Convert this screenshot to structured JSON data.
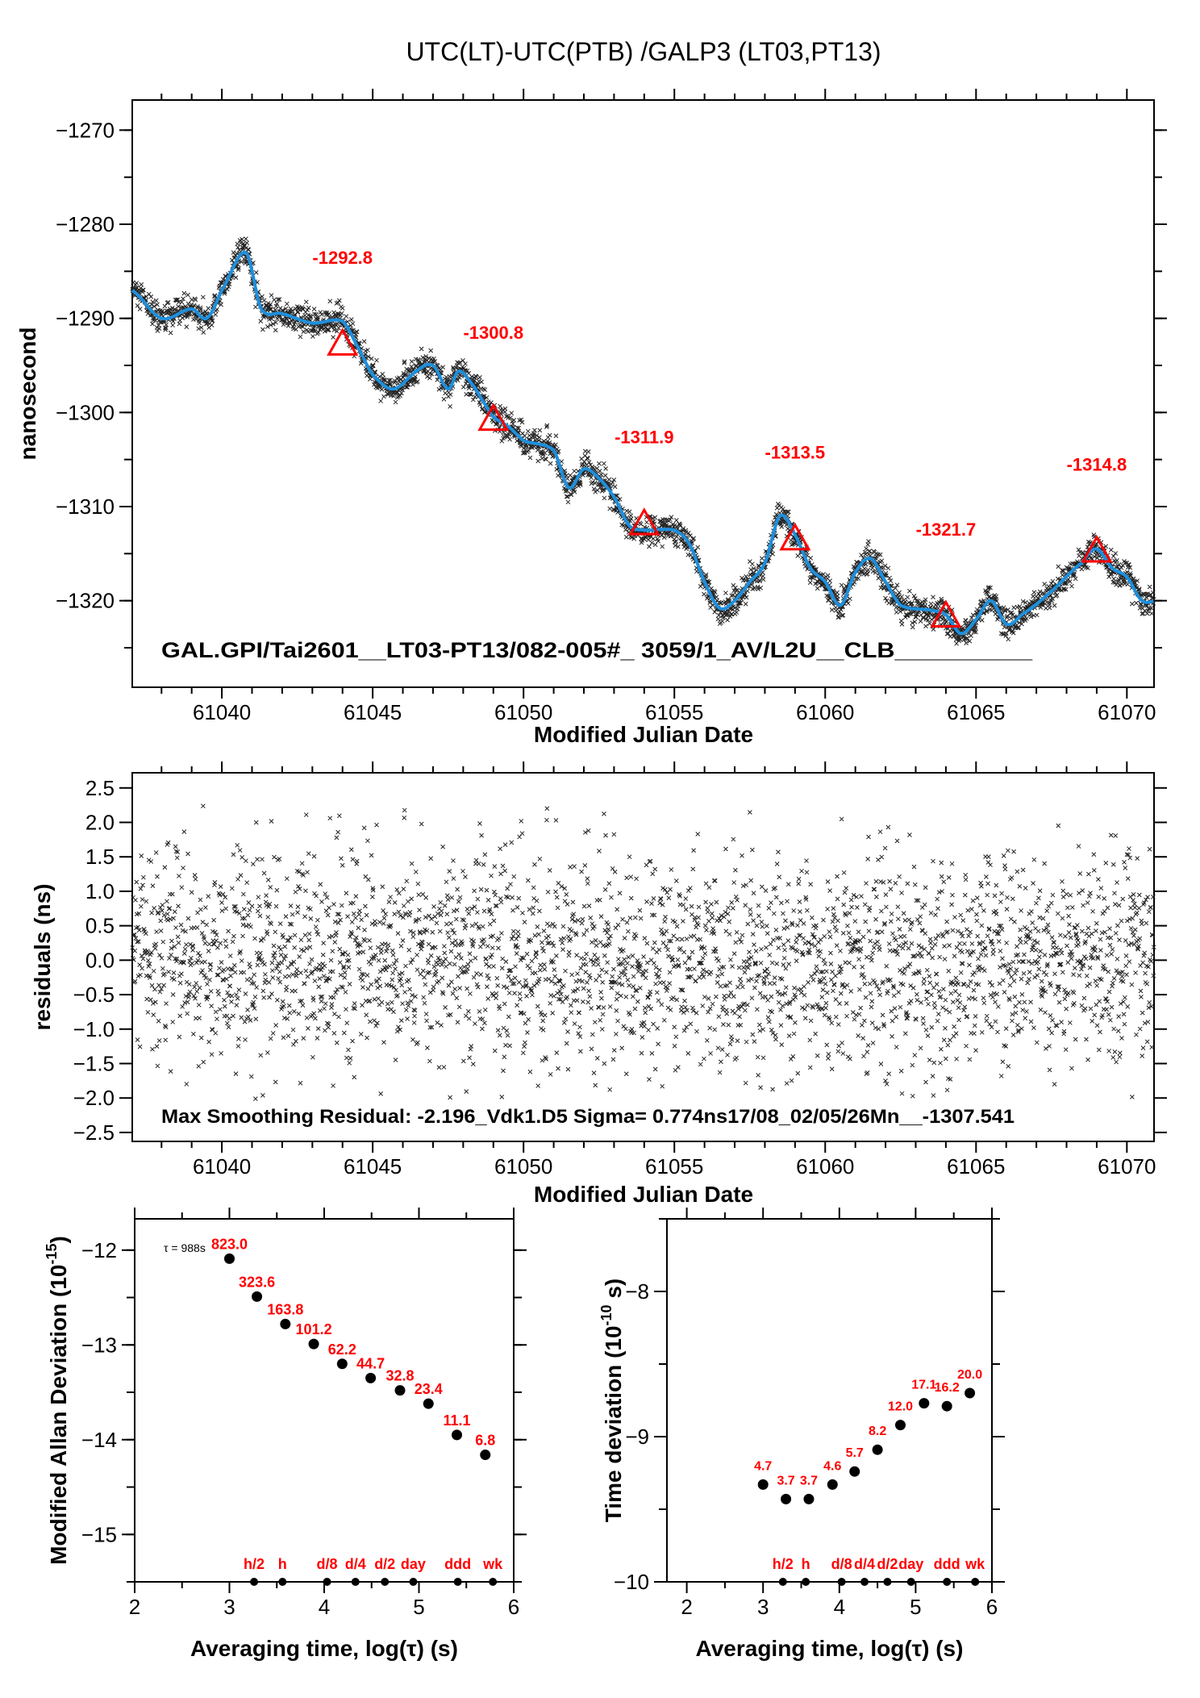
{
  "title": "UTC(LT)-UTC(PTB)  /GALP3  (LT03,PT13)",
  "chart_data": [
    {
      "type": "line",
      "name": "time-series",
      "xlabel": "Modified Julian Date",
      "ylabel": "nanosecond",
      "xlim": [
        61037.03,
        61070.9
      ],
      "ylim": [
        -1329.2,
        -1266.8
      ],
      "xticks": [
        "61040",
        "61045",
        "61050",
        "61055",
        "61060",
        "61065",
        "61070"
      ],
      "xtick_values": [
        61040,
        61045,
        61050,
        61055,
        61060,
        61065,
        61070
      ],
      "yticks": [
        "−1270",
        "−1280",
        "−1290",
        "−1300",
        "−1310",
        "−1320"
      ],
      "ytick_values": [
        -1270,
        -1280,
        -1290,
        -1300,
        -1310,
        -1320
      ],
      "annotation": "GAL.GPI/Tai2601__LT03-PT13/082-005#_  3059/1_AV/L2U__CLB__________",
      "smooth_curve_color": "#1e8fdc",
      "smooth_curve": {
        "x": [
          61037,
          61038,
          61039,
          61039.5,
          61040,
          61040.8,
          61041.3,
          61042,
          61043,
          61044,
          61044.5,
          61045,
          61045.7,
          61046.5,
          61047,
          61047.5,
          61047.85,
          61048.3,
          61048.7,
          61049,
          61049.5,
          61050,
          61051,
          61051.5,
          61052,
          61052.5,
          61053,
          61053.5,
          61054,
          61055,
          61055.5,
          61056,
          61056.5,
          61057,
          61057.5,
          61058,
          61058.5,
          61059,
          61059.5,
          61060,
          61060.5,
          61061,
          61061.5,
          61062,
          61062.5,
          61063.5,
          61064,
          61064.5,
          61065,
          61065.5,
          61066,
          61066.5,
          61067.5,
          61068.5,
          61069,
          61069.5,
          61070,
          61070.5,
          61071
        ],
        "y": [
          -1287,
          -1290,
          -1289,
          -1290,
          -1287,
          -1283,
          -1289,
          -1289.5,
          -1290.5,
          -1290.3,
          -1293,
          -1296,
          -1297.5,
          -1295.5,
          -1295,
          -1297.5,
          -1295.6,
          -1297,
          -1299,
          -1300.5,
          -1301.5,
          -1303,
          -1304,
          -1308,
          -1306,
          -1307,
          -1309,
          -1312,
          -1312.5,
          -1312.5,
          -1314,
          -1318,
          -1320.8,
          -1320,
          -1318,
          -1316,
          -1311,
          -1313,
          -1316.5,
          -1318,
          -1320.5,
          -1317,
          -1315.5,
          -1318,
          -1320.5,
          -1321,
          -1321.5,
          -1323.5,
          -1322,
          -1320,
          -1322.5,
          -1321.5,
          -1319,
          -1316,
          -1314.5,
          -1316.5,
          -1317.5,
          -1320,
          -1320
        ]
      },
      "triangles": [
        {
          "x": 61044,
          "y": -1292.8,
          "label": "-1292.8"
        },
        {
          "x": 61049,
          "y": -1300.8,
          "label": "-1300.8"
        },
        {
          "x": 61054,
          "y": -1311.9,
          "label": "-1311.9"
        },
        {
          "x": 61059,
          "y": -1313.5,
          "label": "-1313.5"
        },
        {
          "x": 61064,
          "y": -1321.7,
          "label": "-1321.7"
        },
        {
          "x": 61069,
          "y": -1314.8,
          "label": "-1314.8"
        }
      ],
      "marker_color": "#ff0000",
      "scatter_note_sampling_s": 988
    },
    {
      "type": "scatter",
      "name": "residuals",
      "xlabel": "Modified Julian Date",
      "ylabel": "residuals (ns)",
      "xlim": [
        61037.03,
        61070.9
      ],
      "ylim": [
        -2.63,
        2.72
      ],
      "xticks": [
        "61040",
        "61045",
        "61050",
        "61055",
        "61060",
        "61065",
        "61070"
      ],
      "xtick_values": [
        61040,
        61045,
        61050,
        61055,
        61060,
        61065,
        61070
      ],
      "yticks": [
        "2.5",
        "2.0",
        "1.5",
        "1.0",
        "0.5",
        "0.0",
        "−0.5",
        "−1.0",
        "−1.5",
        "−2.0",
        "−2.5"
      ],
      "ytick_values": [
        2.5,
        2.0,
        1.5,
        1.0,
        0.5,
        0.0,
        -0.5,
        -1.0,
        -1.5,
        -2.0,
        -2.5
      ],
      "sigma_ns": 0.774,
      "max_residual_ns": -2.196,
      "annotation": "Max Smoothing Residual: -2.196_Vdk1.D5  Sigma= 0.774ns17/08_02/05/26Mn__-1307.541"
    },
    {
      "type": "scatter",
      "name": "modified-allan-deviation",
      "xlabel": "Averaging time, log(τ) (s)",
      "ylabel": "Modified Allan Deviation (10",
      "ylabel_exp": "-15",
      "ylabel_end": ")",
      "xlim": [
        2,
        6
      ],
      "ylim": [
        -15.5,
        -11.67
      ],
      "xticks": [
        "2",
        "3",
        "4",
        "5",
        "6"
      ],
      "xtick_values": [
        2,
        3,
        4,
        5,
        6
      ],
      "yticks": [
        "−12",
        "−13",
        "−14",
        "−15"
      ],
      "ytick_values": [
        -12,
        -13,
        -14,
        -15
      ],
      "tau0_label": "τ = 988s",
      "points": [
        {
          "x": 3.0,
          "y": -12.09,
          "label": "823.0"
        },
        {
          "x": 3.29,
          "y": -12.49,
          "label": "323.6"
        },
        {
          "x": 3.59,
          "y": -12.78,
          "label": "163.8"
        },
        {
          "x": 3.89,
          "y": -12.99,
          "label": "101.2"
        },
        {
          "x": 4.19,
          "y": -13.2,
          "label": "62.2"
        },
        {
          "x": 4.49,
          "y": -13.35,
          "label": "44.7"
        },
        {
          "x": 4.8,
          "y": -13.48,
          "label": "32.8"
        },
        {
          "x": 5.1,
          "y": -13.62,
          "label": "23.4"
        },
        {
          "x": 5.4,
          "y": -13.95,
          "label": "11.1"
        },
        {
          "x": 5.7,
          "y": -14.16,
          "label": "6.8"
        }
      ],
      "time_markers": [
        {
          "x": 3.26,
          "label": "h/2"
        },
        {
          "x": 3.56,
          "label": "h"
        },
        {
          "x": 4.03,
          "label": "d/8"
        },
        {
          "x": 4.33,
          "label": "d/4"
        },
        {
          "x": 4.64,
          "label": "d/2"
        },
        {
          "x": 4.94,
          "label": "day"
        },
        {
          "x": 5.41,
          "label": "ddd"
        },
        {
          "x": 5.78,
          "label": "wk"
        }
      ]
    },
    {
      "type": "scatter",
      "name": "time-deviation",
      "xlabel": "Averaging time, log(τ) (s)",
      "ylabel": "Time deviation (10",
      "ylabel_exp": "-10",
      "ylabel_end": " s)",
      "xlim": [
        1.74,
        6.0
      ],
      "ylim": [
        -10,
        -7.5
      ],
      "xticks": [
        "2",
        "3",
        "4",
        "5",
        "6"
      ],
      "xtick_values": [
        2,
        3,
        4,
        5,
        6
      ],
      "yticks": [
        "−8",
        "−9",
        "−10"
      ],
      "ytick_values": [
        -8,
        -9,
        -10
      ],
      "points": [
        {
          "x": 3.0,
          "y": -9.33,
          "label": "4.7"
        },
        {
          "x": 3.3,
          "y": -9.43,
          "label": "3.7"
        },
        {
          "x": 3.6,
          "y": -9.43,
          "label": "3.7"
        },
        {
          "x": 3.91,
          "y": -9.33,
          "label": "4.6"
        },
        {
          "x": 4.2,
          "y": -9.24,
          "label": "5.7"
        },
        {
          "x": 4.5,
          "y": -9.09,
          "label": "8.2"
        },
        {
          "x": 4.8,
          "y": -8.92,
          "label": "12.0"
        },
        {
          "x": 5.11,
          "y": -8.77,
          "label": "17.1"
        },
        {
          "x": 5.41,
          "y": -8.79,
          "label": "16.2"
        },
        {
          "x": 5.71,
          "y": -8.7,
          "label": "20.0"
        }
      ],
      "time_markers": [
        {
          "x": 3.26,
          "label": "h/2"
        },
        {
          "x": 3.56,
          "label": "h"
        },
        {
          "x": 4.03,
          "label": "d/8"
        },
        {
          "x": 4.33,
          "label": "d/4"
        },
        {
          "x": 4.63,
          "label": "d/2"
        },
        {
          "x": 4.94,
          "label": "day"
        },
        {
          "x": 5.41,
          "label": "ddd"
        },
        {
          "x": 5.78,
          "label": "wk"
        }
      ]
    }
  ]
}
